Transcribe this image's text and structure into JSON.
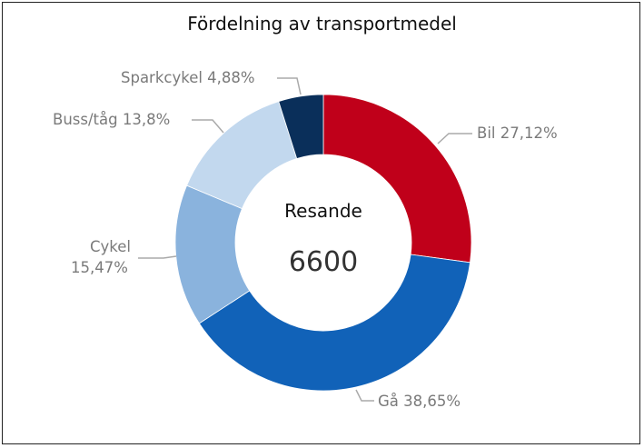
{
  "chart_data": {
    "type": "pie",
    "variant": "donut",
    "title": "Fördelning av transportmedel",
    "center_label": "Resande",
    "center_value": "6600",
    "slices": [
      {
        "name": "Bil",
        "value": 27.12,
        "label": "Bil 27,12%",
        "color": "#C0001A"
      },
      {
        "name": "Gå",
        "value": 38.65,
        "label": "Gå 38,65%",
        "color": "#1162B8"
      },
      {
        "name": "Cykel",
        "value": 15.47,
        "label_line1": "Cykel",
        "label_line2": "15,47%",
        "color": "#8AB3DD"
      },
      {
        "name": "Buss/tåg",
        "value": 13.8,
        "label": "Buss/tåg 13,8%",
        "color": "#C2D8EE"
      },
      {
        "name": "Sparkcykel",
        "value": 4.88,
        "label": "Sparkcykel 4,88%",
        "color": "#0A2F5A"
      }
    ]
  }
}
